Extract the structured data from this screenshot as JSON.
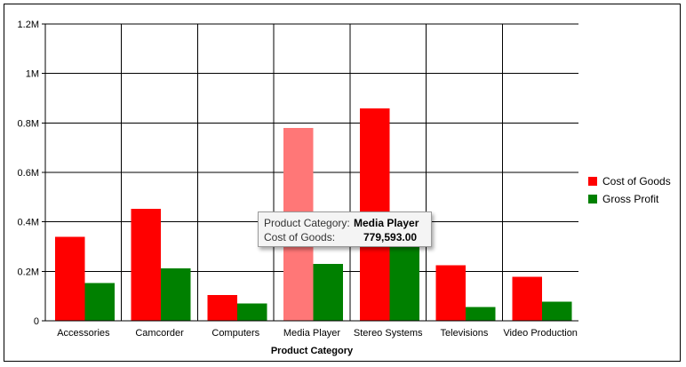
{
  "chart_data": {
    "type": "bar",
    "xlabel": "Product Category",
    "ylabel": "",
    "ylim": [
      0,
      1200000
    ],
    "yticks": [
      {
        "value": 0,
        "label": "0"
      },
      {
        "value": 200000,
        "label": "0.2M"
      },
      {
        "value": 400000,
        "label": "0.4M"
      },
      {
        "value": 600000,
        "label": "0.6M"
      },
      {
        "value": 800000,
        "label": "0.8M"
      },
      {
        "value": 1000000,
        "label": "1M"
      },
      {
        "value": 1200000,
        "label": "1.2M"
      }
    ],
    "categories": [
      "Accessories",
      "Camcorder",
      "Computers",
      "Media Player",
      "Stereo Systems",
      "Televisions",
      "Video Production"
    ],
    "series": [
      {
        "name": "Cost of Goods",
        "color": "#ff0000",
        "values": [
          340000,
          452000,
          105000,
          779593,
          858000,
          225000,
          178000
        ]
      },
      {
        "name": "Gross Profit",
        "color": "#008000",
        "values": [
          152000,
          212000,
          70000,
          230000,
          320000,
          55000,
          77000
        ]
      }
    ],
    "highlight": {
      "category_index": 3,
      "series_index": 0,
      "color": "#ff7777"
    },
    "grid": true,
    "legend_position": "right"
  },
  "tooltip": {
    "category_key": "Product Category:",
    "category_value": "Media Player",
    "value_key": "Cost of Goods:",
    "value_value": "779,593.00"
  }
}
